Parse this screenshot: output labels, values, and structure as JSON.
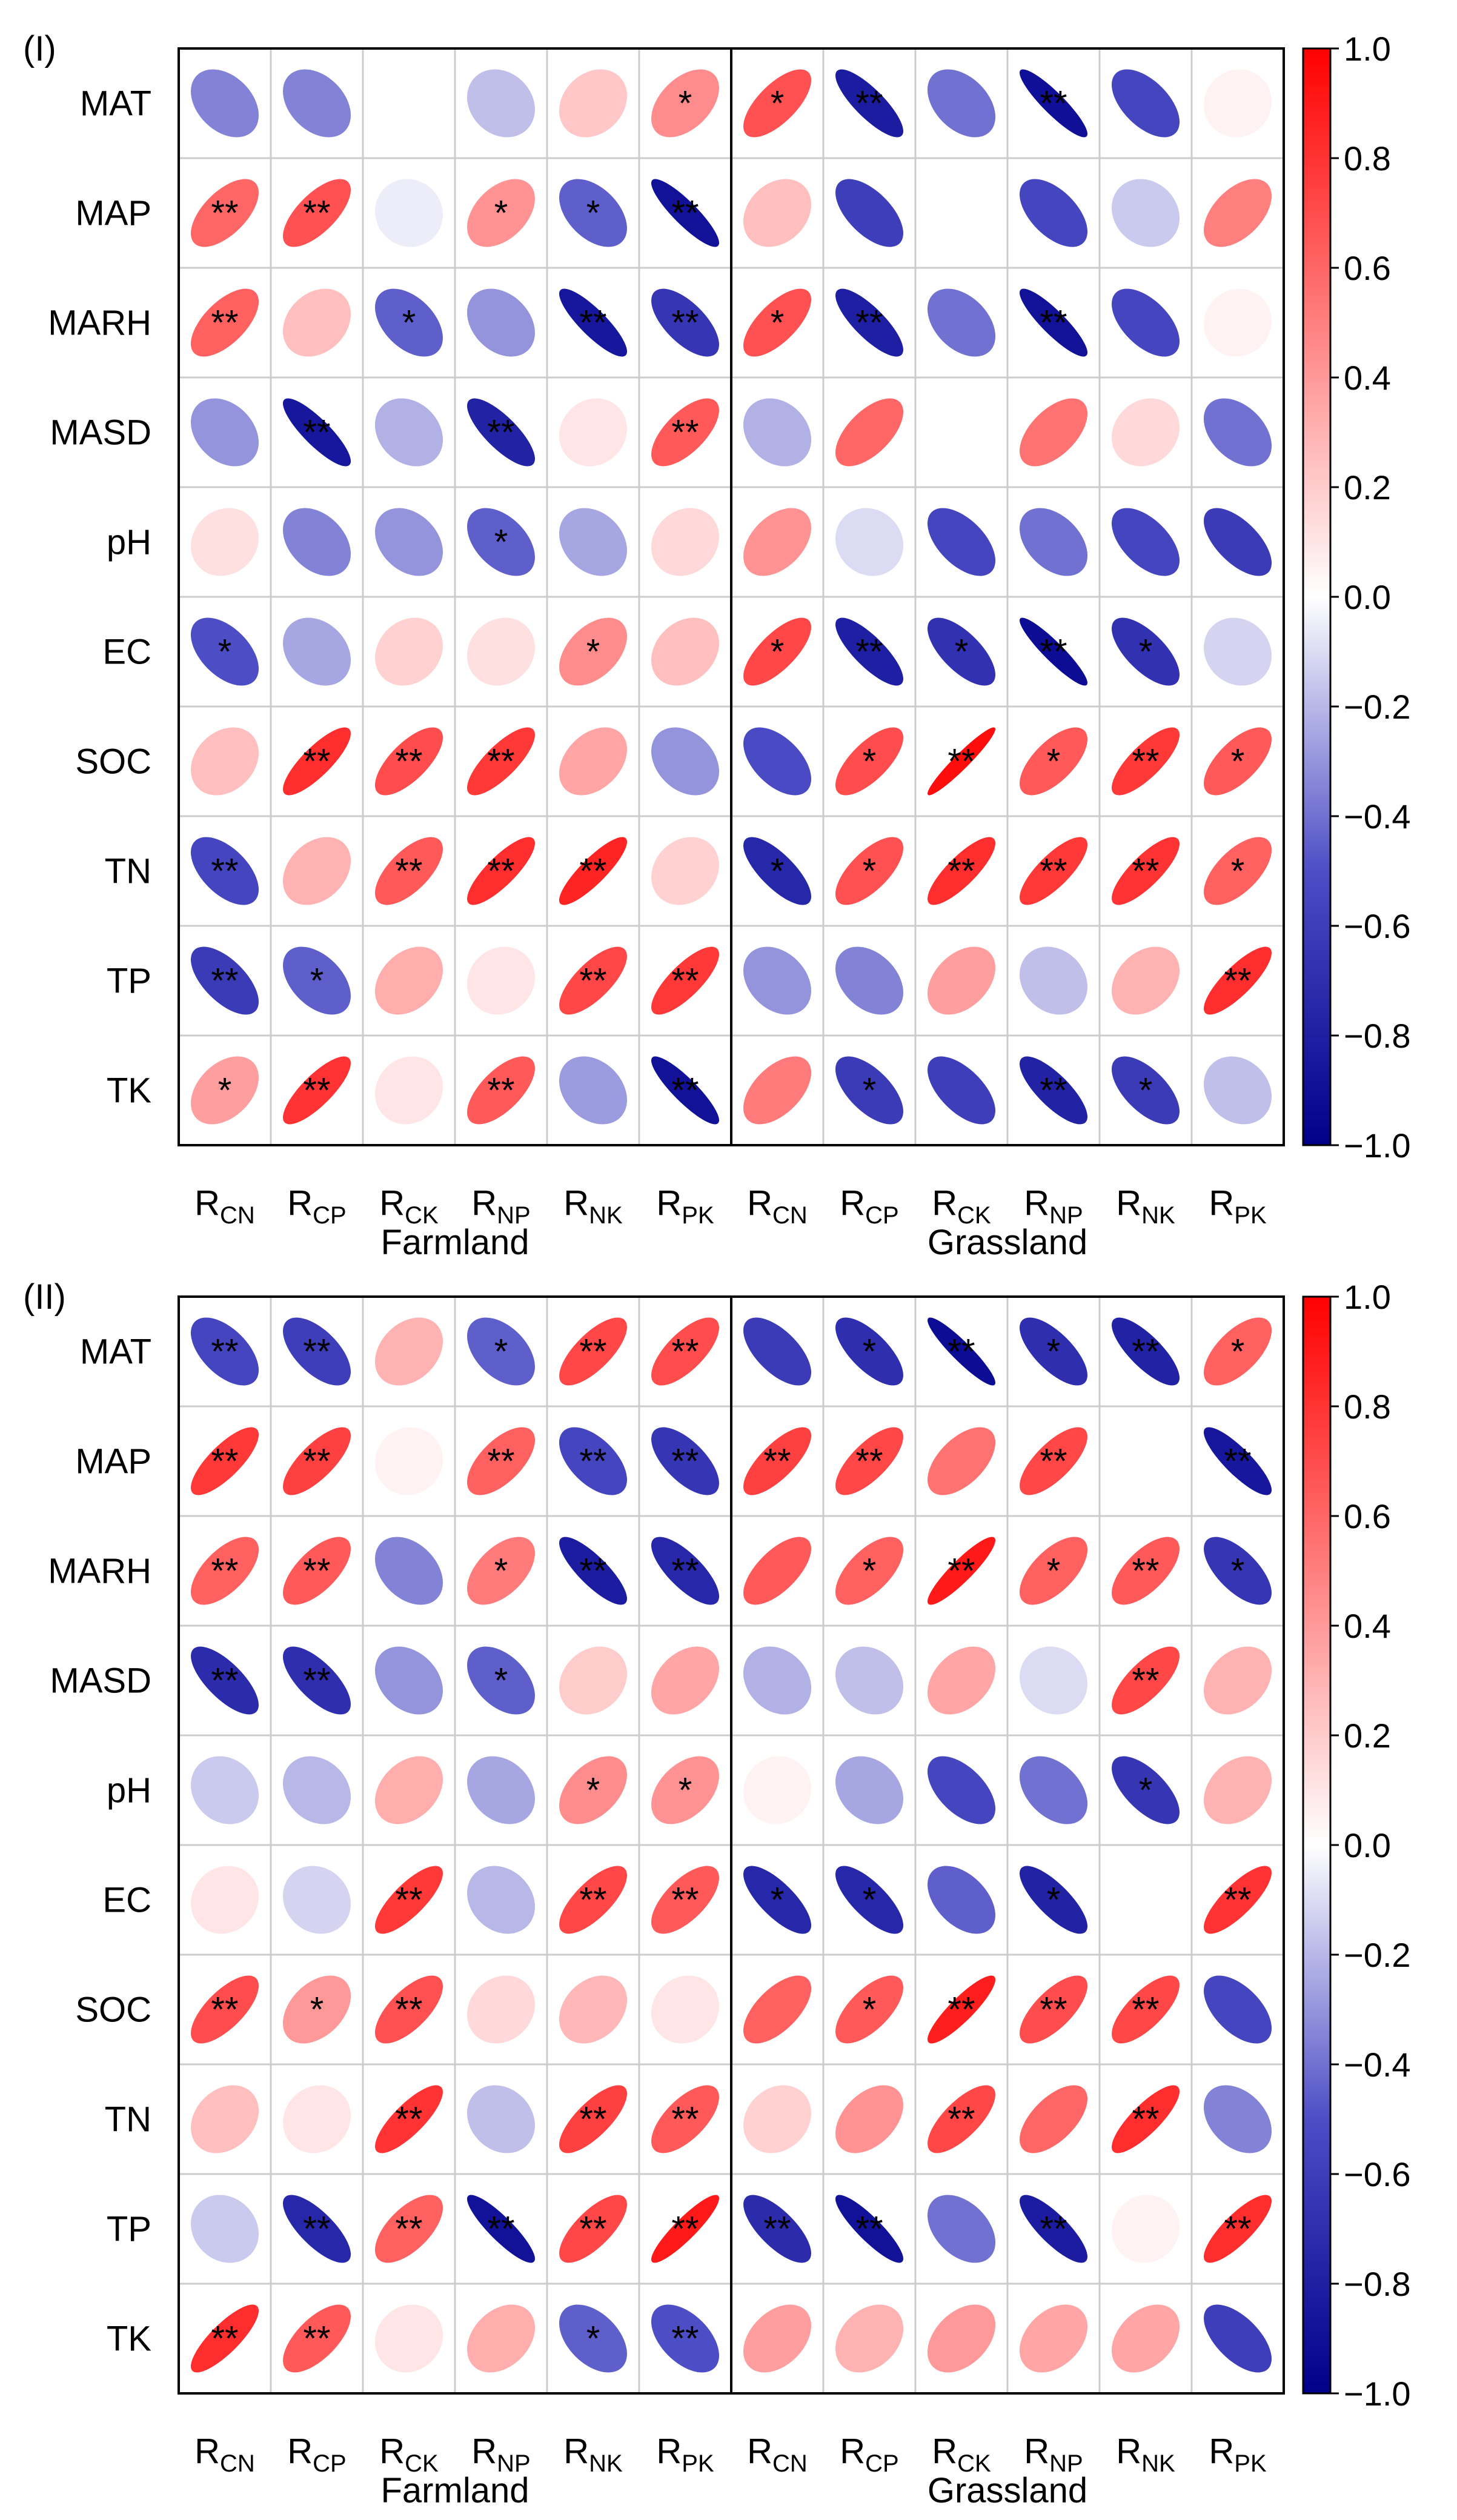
{
  "chart_data": [
    {
      "type": "correlation_ellipse_matrix",
      "panel_label": "(I)",
      "rows": [
        "MAT",
        "MAP",
        "MARH",
        "MASD",
        "pH",
        "EC",
        "SOC",
        "TN",
        "TP",
        "TK"
      ],
      "columns": [
        {
          "base": "R",
          "sub": "CN"
        },
        {
          "base": "R",
          "sub": "CP"
        },
        {
          "base": "R",
          "sub": "CK"
        },
        {
          "base": "R",
          "sub": "NP"
        },
        {
          "base": "R",
          "sub": "NK"
        },
        {
          "base": "R",
          "sub": "PK"
        },
        {
          "base": "R",
          "sub": "CN"
        },
        {
          "base": "R",
          "sub": "CP"
        },
        {
          "base": "R",
          "sub": "CK"
        },
        {
          "base": "R",
          "sub": "NP"
        },
        {
          "base": "R",
          "sub": "NK"
        },
        {
          "base": "R",
          "sub": "PK"
        }
      ],
      "groups": [
        "Farmland",
        "Grassland"
      ],
      "colorbar_ticks": [
        "1.0",
        "0.8",
        "0.6",
        "0.4",
        "0.2",
        "0.0",
        "−0.2",
        "−0.4",
        "−0.6",
        "−0.8",
        "−1.0"
      ],
      "colorbar_range": [
        -1,
        1
      ],
      "values": [
        [
          -0.35,
          -0.35,
          null,
          -0.18,
          0.22,
          0.45,
          0.68,
          -0.82,
          -0.4,
          -0.9,
          -0.55,
          0.05
        ],
        [
          0.6,
          0.68,
          -0.05,
          0.42,
          -0.45,
          -0.88,
          0.25,
          -0.6,
          null,
          -0.55,
          -0.15,
          0.5
        ],
        [
          0.62,
          0.25,
          -0.45,
          -0.3,
          -0.85,
          -0.65,
          0.68,
          -0.8,
          -0.4,
          -0.88,
          -0.55,
          0.05
        ],
        [
          -0.3,
          -0.85,
          -0.22,
          -0.78,
          0.1,
          0.65,
          -0.22,
          0.6,
          null,
          0.55,
          0.15,
          -0.4
        ],
        [
          0.12,
          -0.35,
          -0.3,
          -0.45,
          -0.25,
          0.15,
          0.42,
          -0.1,
          -0.55,
          -0.4,
          -0.55,
          -0.62
        ],
        [
          -0.5,
          -0.25,
          0.18,
          0.12,
          0.45,
          0.25,
          0.72,
          -0.8,
          -0.68,
          -0.92,
          -0.68,
          -0.12
        ],
        [
          0.25,
          0.82,
          0.7,
          0.78,
          0.35,
          -0.3,
          -0.52,
          0.7,
          0.95,
          0.65,
          0.78,
          0.65
        ],
        [
          -0.55,
          0.3,
          0.65,
          0.82,
          0.86,
          0.18,
          -0.75,
          0.68,
          0.82,
          0.78,
          0.8,
          0.62
        ],
        [
          -0.62,
          -0.45,
          0.32,
          0.1,
          0.72,
          0.78,
          -0.3,
          -0.35,
          0.38,
          -0.18,
          0.3,
          0.82
        ],
        [
          0.38,
          0.8,
          0.1,
          0.65,
          -0.28,
          -0.88,
          0.52,
          -0.62,
          -0.6,
          -0.78,
          -0.62,
          -0.18
        ]
      ],
      "significance": [
        [
          "",
          "",
          "",
          "",
          "",
          "*",
          "*",
          "**",
          "",
          "**",
          "",
          ""
        ],
        [
          "**",
          "**",
          "",
          "*",
          "*",
          "**",
          "",
          "",
          "",
          "",
          "",
          ""
        ],
        [
          "**",
          "",
          "*",
          "",
          "**",
          "**",
          "*",
          "**",
          "",
          "**",
          "",
          ""
        ],
        [
          "",
          "**",
          "",
          "**",
          "",
          "**",
          "",
          "",
          "",
          "",
          "",
          ""
        ],
        [
          "",
          "",
          "",
          "*",
          "",
          "",
          "",
          "",
          "",
          "",
          "",
          ""
        ],
        [
          "*",
          "",
          "",
          "",
          "*",
          "",
          "*",
          "**",
          "*",
          "**",
          "*",
          ""
        ],
        [
          "",
          "**",
          "**",
          "**",
          "",
          "",
          "",
          "*",
          "**",
          "*",
          "**",
          "*"
        ],
        [
          "**",
          "",
          "**",
          "**",
          "**",
          "",
          "*",
          "*",
          "**",
          "**",
          "**",
          "*"
        ],
        [
          "**",
          "*",
          "",
          "",
          "**",
          "**",
          "",
          "",
          "",
          "",
          "",
          "**"
        ],
        [
          "*",
          "**",
          "",
          "**",
          "",
          "**",
          "",
          "*",
          "",
          "**",
          "*",
          ""
        ]
      ]
    },
    {
      "type": "correlation_ellipse_matrix",
      "panel_label": "(II)",
      "rows": [
        "MAT",
        "MAP",
        "MARH",
        "MASD",
        "pH",
        "EC",
        "SOC",
        "TN",
        "TP",
        "TK"
      ],
      "columns": [
        {
          "base": "R",
          "sub": "CN"
        },
        {
          "base": "R",
          "sub": "CP"
        },
        {
          "base": "R",
          "sub": "CK"
        },
        {
          "base": "R",
          "sub": "NP"
        },
        {
          "base": "R",
          "sub": "NK"
        },
        {
          "base": "R",
          "sub": "PK"
        },
        {
          "base": "R",
          "sub": "CN"
        },
        {
          "base": "R",
          "sub": "CP"
        },
        {
          "base": "R",
          "sub": "CK"
        },
        {
          "base": "R",
          "sub": "NP"
        },
        {
          "base": "R",
          "sub": "NK"
        },
        {
          "base": "R",
          "sub": "PK"
        }
      ],
      "groups": [
        "Farmland",
        "Grassland"
      ],
      "colorbar_ticks": [
        "1.0",
        "0.8",
        "0.6",
        "0.4",
        "0.2",
        "0.0",
        "−0.2",
        "−0.4",
        "−0.6",
        "−0.8",
        "−1.0"
      ],
      "colorbar_range": [
        -1,
        1
      ],
      "values": [
        [
          -0.55,
          -0.6,
          0.3,
          -0.45,
          0.72,
          0.7,
          -0.62,
          -0.7,
          -0.92,
          -0.7,
          -0.78,
          0.62
        ],
        [
          0.78,
          0.75,
          0.05,
          0.62,
          -0.55,
          -0.65,
          0.75,
          0.72,
          0.55,
          0.72,
          null,
          -0.85
        ],
        [
          0.62,
          0.65,
          -0.35,
          0.52,
          -0.82,
          -0.75,
          0.65,
          0.62,
          0.9,
          0.62,
          0.65,
          -0.65
        ],
        [
          -0.72,
          -0.7,
          -0.3,
          -0.45,
          0.2,
          0.35,
          -0.22,
          -0.18,
          0.35,
          -0.1,
          0.72,
          0.3
        ],
        [
          -0.15,
          -0.2,
          0.32,
          -0.25,
          0.45,
          0.42,
          0.05,
          -0.25,
          -0.55,
          -0.4,
          -0.65,
          0.3
        ],
        [
          0.1,
          -0.12,
          0.78,
          -0.2,
          0.72,
          0.65,
          -0.75,
          -0.75,
          -0.45,
          -0.78,
          null,
          0.8
        ],
        [
          0.7,
          0.4,
          0.68,
          0.15,
          0.28,
          0.1,
          0.62,
          0.65,
          0.88,
          0.7,
          0.72,
          -0.55
        ],
        [
          0.25,
          0.1,
          0.8,
          -0.18,
          0.75,
          0.65,
          0.18,
          0.42,
          0.72,
          0.6,
          0.82,
          -0.35
        ],
        [
          -0.15,
          -0.75,
          0.62,
          -0.88,
          0.72,
          0.9,
          -0.72,
          -0.88,
          -0.4,
          -0.82,
          0.05,
          0.82
        ],
        [
          0.82,
          0.65,
          0.1,
          0.32,
          -0.45,
          -0.5,
          0.38,
          0.3,
          0.4,
          0.35,
          0.35,
          -0.6
        ]
      ],
      "significance": [
        [
          "**",
          "**",
          "",
          "*",
          "**",
          "**",
          "",
          "*",
          "**",
          "*",
          "**",
          "*"
        ],
        [
          "**",
          "**",
          "",
          "**",
          "**",
          "**",
          "**",
          "**",
          "",
          "**",
          "",
          "**"
        ],
        [
          "**",
          "**",
          "",
          "*",
          "**",
          "**",
          "",
          "*",
          "**",
          "*",
          "**",
          "*"
        ],
        [
          "**",
          "**",
          "",
          "*",
          "",
          "",
          "",
          "",
          "",
          "",
          "**",
          ""
        ],
        [
          "",
          "",
          "",
          "",
          "*",
          "*",
          "",
          "",
          "",
          "",
          "*",
          ""
        ],
        [
          "",
          "",
          "**",
          "",
          "**",
          "**",
          "*",
          "*",
          "",
          "*",
          "",
          "**"
        ],
        [
          "**",
          "*",
          "**",
          "",
          "",
          "",
          "",
          "*",
          "**",
          "**",
          "**",
          ""
        ],
        [
          "",
          "",
          "**",
          "",
          "**",
          "**",
          "",
          "",
          "**",
          "",
          "**",
          ""
        ],
        [
          "",
          "**",
          "**",
          "**",
          "**",
          "**",
          "**",
          "**",
          "",
          "**",
          "",
          "**"
        ],
        [
          "**",
          "**",
          "",
          "",
          "*",
          "**",
          "",
          "",
          "",
          "",
          "",
          ""
        ]
      ]
    }
  ]
}
